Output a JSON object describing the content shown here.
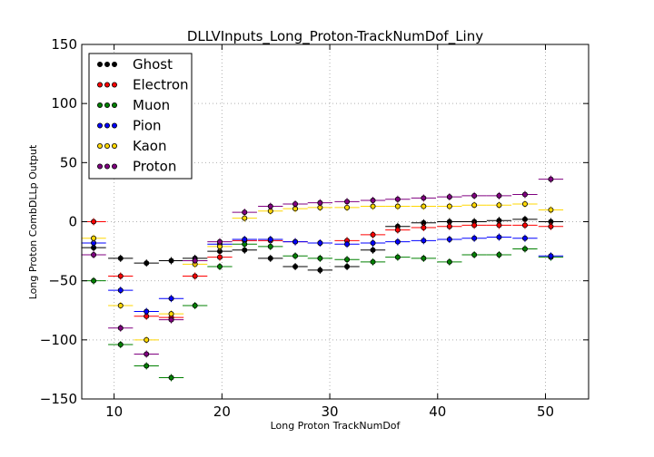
{
  "chart_data": {
    "type": "scatter",
    "title": "DLLVInputs_Long_Proton-TrackNumDof_Liny",
    "xlabel": "Long Proton TrackNumDof",
    "ylabel": "Long Proton CombDLLp Output",
    "xlim": [
      7,
      54
    ],
    "ylim": [
      -150,
      150
    ],
    "xticks": [
      10,
      20,
      30,
      40,
      50
    ],
    "yticks": [
      -150,
      -100,
      -50,
      0,
      50,
      100,
      150
    ],
    "grid": true,
    "legend_position": "upper-left",
    "error_bars": true,
    "series": [
      {
        "name": "Ghost",
        "color": "#000000",
        "x": [
          8.1,
          10.6,
          13.0,
          15.3,
          17.5,
          19.8,
          22.1,
          24.5,
          26.8,
          29.1,
          31.6,
          34.0,
          36.3,
          38.7,
          41.1,
          43.4,
          45.7,
          48.1,
          50.5
        ],
        "y": [
          -22,
          -31,
          -35,
          -33,
          -31,
          -25,
          -24,
          -31,
          -38,
          -41,
          -38,
          -24,
          -4,
          -1,
          0,
          0,
          1,
          2,
          0
        ]
      },
      {
        "name": "Electron",
        "color": "#ff0000",
        "x": [
          8.1,
          10.6,
          13.0,
          15.3,
          17.5,
          19.8,
          22.1,
          24.5,
          26.8,
          29.1,
          31.6,
          34.0,
          36.3,
          38.7,
          41.1,
          43.4,
          45.7,
          48.1,
          50.5
        ],
        "y": [
          0,
          -46,
          -80,
          -81,
          -46,
          -30,
          -16,
          -16,
          -17,
          -18,
          -16,
          -11,
          -7,
          -5,
          -4,
          -3,
          -3,
          -3,
          -4
        ]
      },
      {
        "name": "Muon",
        "color": "#008000",
        "x": [
          8.1,
          10.6,
          13.0,
          15.3,
          17.5,
          19.8,
          22.1,
          24.5,
          26.8,
          29.1,
          31.6,
          34.0,
          36.3,
          38.7,
          41.1,
          43.4,
          45.7,
          48.1,
          50.5
        ],
        "y": [
          -50,
          -104,
          -122,
          -132,
          -71,
          -38,
          -19,
          -21,
          -29,
          -31,
          -32,
          -34,
          -30,
          -31,
          -34,
          -28,
          -28,
          -23,
          -30
        ]
      },
      {
        "name": "Pion",
        "color": "#0000ff",
        "x": [
          8.1,
          10.6,
          13.0,
          15.3,
          17.5,
          19.8,
          22.1,
          24.5,
          26.8,
          29.1,
          31.6,
          34.0,
          36.3,
          38.7,
          41.1,
          43.4,
          45.7,
          48.1,
          50.5
        ],
        "y": [
          -18,
          -58,
          -76,
          -65,
          -33,
          -19,
          -15,
          -15,
          -17,
          -18,
          -19,
          -18,
          -17,
          -16,
          -15,
          -14,
          -13,
          -14,
          -29
        ]
      },
      {
        "name": "Kaon",
        "color": "#ffd700",
        "x": [
          8.1,
          10.6,
          13.0,
          15.3,
          17.5,
          19.8,
          22.1,
          24.5,
          26.8,
          29.1,
          31.6,
          34.0,
          36.3,
          38.7,
          41.1,
          43.4,
          45.7,
          48.1,
          50.5
        ],
        "y": [
          -14,
          -71,
          -100,
          -78,
          -36,
          -21,
          3,
          9,
          11,
          12,
          12,
          13,
          13,
          13,
          13,
          14,
          14,
          15,
          10
        ]
      },
      {
        "name": "Proton",
        "color": "#800080",
        "x": [
          8.1,
          10.6,
          13.0,
          15.3,
          17.5,
          19.8,
          22.1,
          24.5,
          26.8,
          29.1,
          31.6,
          34.0,
          36.3,
          38.7,
          41.1,
          43.4,
          45.7,
          48.1,
          50.5
        ],
        "y": [
          -28,
          -90,
          -112,
          -83,
          -33,
          -17,
          8,
          13,
          15,
          16,
          17,
          18,
          19,
          20,
          21,
          22,
          22,
          23,
          36
        ]
      }
    ]
  }
}
